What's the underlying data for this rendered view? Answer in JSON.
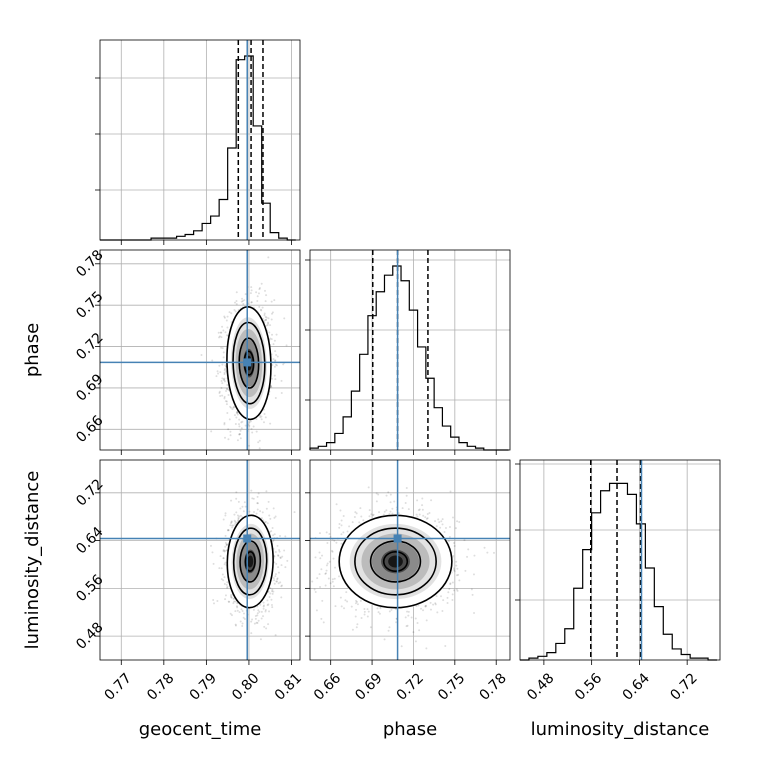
{
  "chart_data": {
    "type": "corner",
    "title": "",
    "grid": true,
    "truth_color": "#4682b4",
    "parameters": [
      {
        "name": "geocent_time",
        "range": [
          0.765,
          0.812
        ],
        "ticks": [
          "0.77",
          "0.78",
          "0.79",
          "0.80",
          "0.81"
        ],
        "truth": 0.7996,
        "quantiles": [
          0.7975,
          0.8005,
          0.8033
        ],
        "hist_bins": [
          0.765,
          0.767,
          0.769,
          0.771,
          0.773,
          0.775,
          0.777,
          0.779,
          0.781,
          0.783,
          0.785,
          0.787,
          0.789,
          0.791,
          0.793,
          0.795,
          0.797,
          0.799,
          0.801,
          0.803,
          0.805,
          0.807,
          0.809,
          0.811
        ],
        "hist_values": [
          0,
          0,
          0,
          0,
          0,
          0,
          0.01,
          0.01,
          0.01,
          0.02,
          0.03,
          0.05,
          0.09,
          0.13,
          0.22,
          0.5,
          0.98,
          1.0,
          0.62,
          0.2,
          0.04,
          0.01,
          0
        ]
      },
      {
        "name": "phase",
        "range": [
          0.645,
          0.79
        ],
        "ticks": [
          "0.66",
          "0.69",
          "0.72",
          "0.75",
          "0.78"
        ],
        "truth": 0.7085,
        "quantiles": [
          0.6905,
          0.7085,
          0.7305
        ],
        "hist_bins": [
          0.645,
          0.651,
          0.657,
          0.663,
          0.669,
          0.675,
          0.681,
          0.687,
          0.693,
          0.699,
          0.705,
          0.711,
          0.717,
          0.723,
          0.729,
          0.735,
          0.741,
          0.747,
          0.753,
          0.759,
          0.765,
          0.771,
          0.777,
          0.783,
          0.789
        ],
        "hist_values": [
          0.01,
          0.02,
          0.04,
          0.09,
          0.18,
          0.32,
          0.52,
          0.73,
          0.86,
          0.95,
          1.0,
          0.92,
          0.76,
          0.56,
          0.39,
          0.23,
          0.13,
          0.07,
          0.04,
          0.02,
          0.01,
          0,
          0,
          0
        ]
      },
      {
        "name": "luminosity_distance",
        "range": [
          0.44,
          0.775
        ],
        "ticks": [
          "0.48",
          "0.56",
          "0.64",
          "0.72"
        ],
        "truth": 0.6435,
        "quantiles": [
          0.5585,
          0.6025,
          0.642
        ],
        "hist_bins": [
          0.44,
          0.455,
          0.47,
          0.485,
          0.5,
          0.515,
          0.53,
          0.545,
          0.56,
          0.575,
          0.59,
          0.605,
          0.62,
          0.635,
          0.65,
          0.665,
          0.68,
          0.695,
          0.71,
          0.725,
          0.74,
          0.755,
          0.77
        ],
        "hist_values": [
          0,
          0.01,
          0.02,
          0.04,
          0.09,
          0.17,
          0.39,
          0.6,
          0.8,
          0.92,
          0.96,
          0.96,
          0.9,
          0.74,
          0.5,
          0.29,
          0.14,
          0.06,
          0.03,
          0.01,
          0.01,
          0
        ]
      }
    ],
    "pairs": [
      {
        "x": "geocent_time",
        "y": "phase",
        "center": [
          0.8,
          0.708
        ],
        "sigma": [
          0.0024,
          0.019
        ],
        "rho": 0.05
      },
      {
        "x": "geocent_time",
        "y": "luminosity_distance",
        "center": [
          0.8003,
          0.605
        ],
        "sigma": [
          0.0025,
          0.036
        ],
        "rho": -0.05
      },
      {
        "x": "phase",
        "y": "luminosity_distance",
        "center": [
          0.707,
          0.605
        ],
        "sigma": [
          0.019,
          0.036
        ],
        "rho": 0.0
      }
    ]
  }
}
